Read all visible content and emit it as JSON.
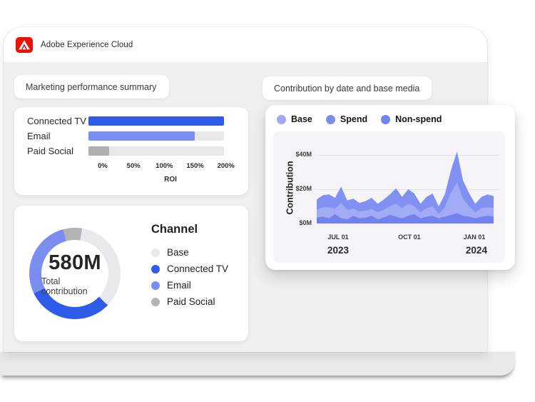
{
  "topbar": {
    "brand": "Adobe Experience Cloud",
    "logo_color": "#EB1000"
  },
  "colors": {
    "accent_blue": "#2E5BE8",
    "periwinkle": "#7C8DF2",
    "gray": "#B3B3B3",
    "screen_bg": "#F0F0F0",
    "panel_bg": "#F5F5F7"
  },
  "chart_data": [
    {
      "type": "bar",
      "orientation": "horizontal",
      "title": "Marketing performance summary",
      "categories": [
        "Connected TV",
        "Email",
        "Paid Social"
      ],
      "values": [
        220,
        173,
        34
      ],
      "unit": "%",
      "xlabel": "ROI",
      "xticks": [
        "0%",
        "50%",
        "100%",
        "150%",
        "200%"
      ],
      "xtick_values": [
        0,
        50,
        100,
        150,
        200
      ],
      "xlim": [
        0,
        220
      ],
      "bar_colors": [
        "#2E5BE8",
        "#7C8DF2",
        "#AFAFAF"
      ],
      "track_color": "#E8E8E8"
    },
    {
      "type": "pie",
      "subtype": "donut",
      "center_value": "580M",
      "center_label": "Total contribution",
      "legend_title": "Channel",
      "start_angle_deg": 9,
      "segments": [
        {
          "label": "Base",
          "sweep_deg": 125,
          "percent": 34.7,
          "color": "#E9E9EB"
        },
        {
          "label": "Connected TV",
          "sweep_deg": 110,
          "percent": 30.6,
          "color": "#2E5BE8"
        },
        {
          "label": "Email",
          "sweep_deg": 101,
          "percent": 28.0,
          "color": "#7C8DF2"
        },
        {
          "label": "Paid Social",
          "sweep_deg": 24,
          "percent": 6.7,
          "color": "#B3B3B3"
        }
      ]
    },
    {
      "type": "area",
      "stacked": true,
      "title": "Contribution by date and base media",
      "ylabel": "Contribution",
      "yticks": [
        "$0M",
        "$20M",
        "$40M"
      ],
      "ylim": [
        0,
        43.75
      ],
      "unit": "$M",
      "grid": true,
      "legend_position": "top",
      "legend": [
        {
          "label": "Base",
          "color": "#9EA8F4"
        },
        {
          "label": "Spend",
          "color": "#7D8BF1"
        },
        {
          "label": "Non-spend",
          "color": "#7484EF"
        }
      ],
      "xticks": [
        {
          "label": "JUL 01",
          "pos": 0.121
        },
        {
          "label": "OCT 01",
          "pos": 0.524
        },
        {
          "label": "JAN 01",
          "pos": 0.891
        }
      ],
      "year_labels": [
        {
          "label": "2023",
          "pos": 0.121
        },
        {
          "label": "2024",
          "pos": 0.903
        }
      ],
      "series": [
        {
          "name": "Non-spend",
          "color": "#7181EE",
          "values": [
            3.5,
            4,
            3,
            5.5,
            3,
            2.5,
            4.5,
            3,
            3.5,
            4.5,
            2.5,
            3.5,
            5,
            4,
            3,
            4.5,
            5.5,
            3,
            4,
            4.5,
            3,
            4,
            5,
            6,
            4.5,
            4,
            3,
            4,
            4.5,
            4
          ]
        },
        {
          "name": "Base",
          "color": "#A2ABF5",
          "values": [
            4.5,
            5.5,
            6.5,
            3,
            9,
            5.5,
            4,
            4,
            4,
            4,
            4,
            4.5,
            5,
            7.5,
            6,
            7,
            4.5,
            3.5,
            5,
            5.5,
            2.5,
            5.5,
            13,
            18,
            10,
            6,
            3.5,
            5,
            5,
            5
          ]
        },
        {
          "name": "Spend",
          "color": "#8290F1",
          "values": [
            6,
            7,
            7.5,
            6.5,
            9.5,
            5.5,
            6,
            5,
            5.5,
            6.5,
            5,
            6,
            7,
            9,
            6.5,
            8.5,
            7.5,
            5,
            6.5,
            7.5,
            4.5,
            7.5,
            13,
            18,
            10.5,
            7.5,
            5,
            6.5,
            7.5,
            7
          ]
        }
      ]
    }
  ]
}
